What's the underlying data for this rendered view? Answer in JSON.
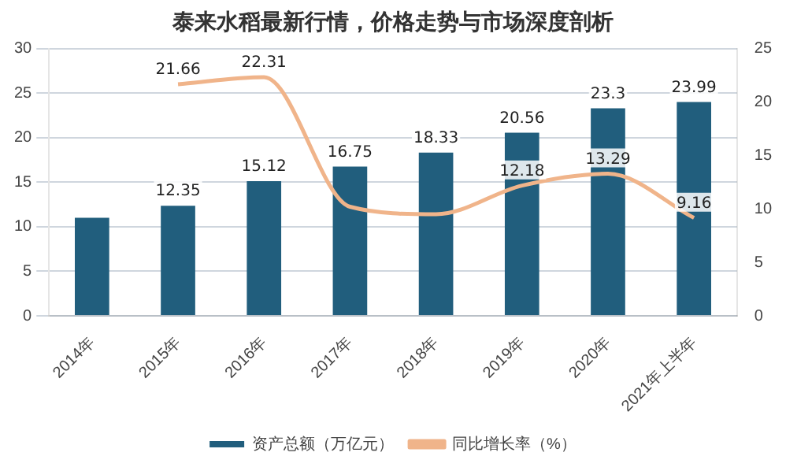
{
  "chart_data": {
    "type": "bar",
    "title": "泰来水稻最新行情，价格走势与市场深度剖析",
    "categories": [
      "2014年",
      "2015年",
      "2016年",
      "2017年",
      "2018年",
      "2019年",
      "2020年",
      "2021年上半年"
    ],
    "series": [
      {
        "name": "资产总额（万亿元）",
        "color": "#215e7d",
        "values": [
          11.0,
          12.35,
          15.12,
          16.75,
          18.33,
          20.56,
          23.3,
          23.99
        ],
        "value_labels": [
          null,
          "12.35",
          "15.12",
          "16.75",
          "18.33",
          "20.56",
          "23.3",
          "23.99"
        ]
      },
      {
        "name": "同比增长率（%）",
        "type": "line",
        "axis": "y2",
        "color": "#f0b48a",
        "values": [
          null,
          21.66,
          22.31,
          10.2,
          9.5,
          12.18,
          13.29,
          9.16
        ],
        "value_labels": [
          null,
          "21.66",
          "22.31",
          null,
          null,
          "12.18",
          "13.29",
          "9.16"
        ]
      }
    ],
    "ylim": [
      0,
      30
    ],
    "yticks": [
      0,
      5,
      10,
      15,
      20,
      25,
      30
    ],
    "y2lim": [
      0,
      25
    ],
    "y2ticks": [
      0,
      5,
      10,
      15,
      20,
      25
    ],
    "grid": "y",
    "legend": "bottom",
    "marker": "none"
  }
}
